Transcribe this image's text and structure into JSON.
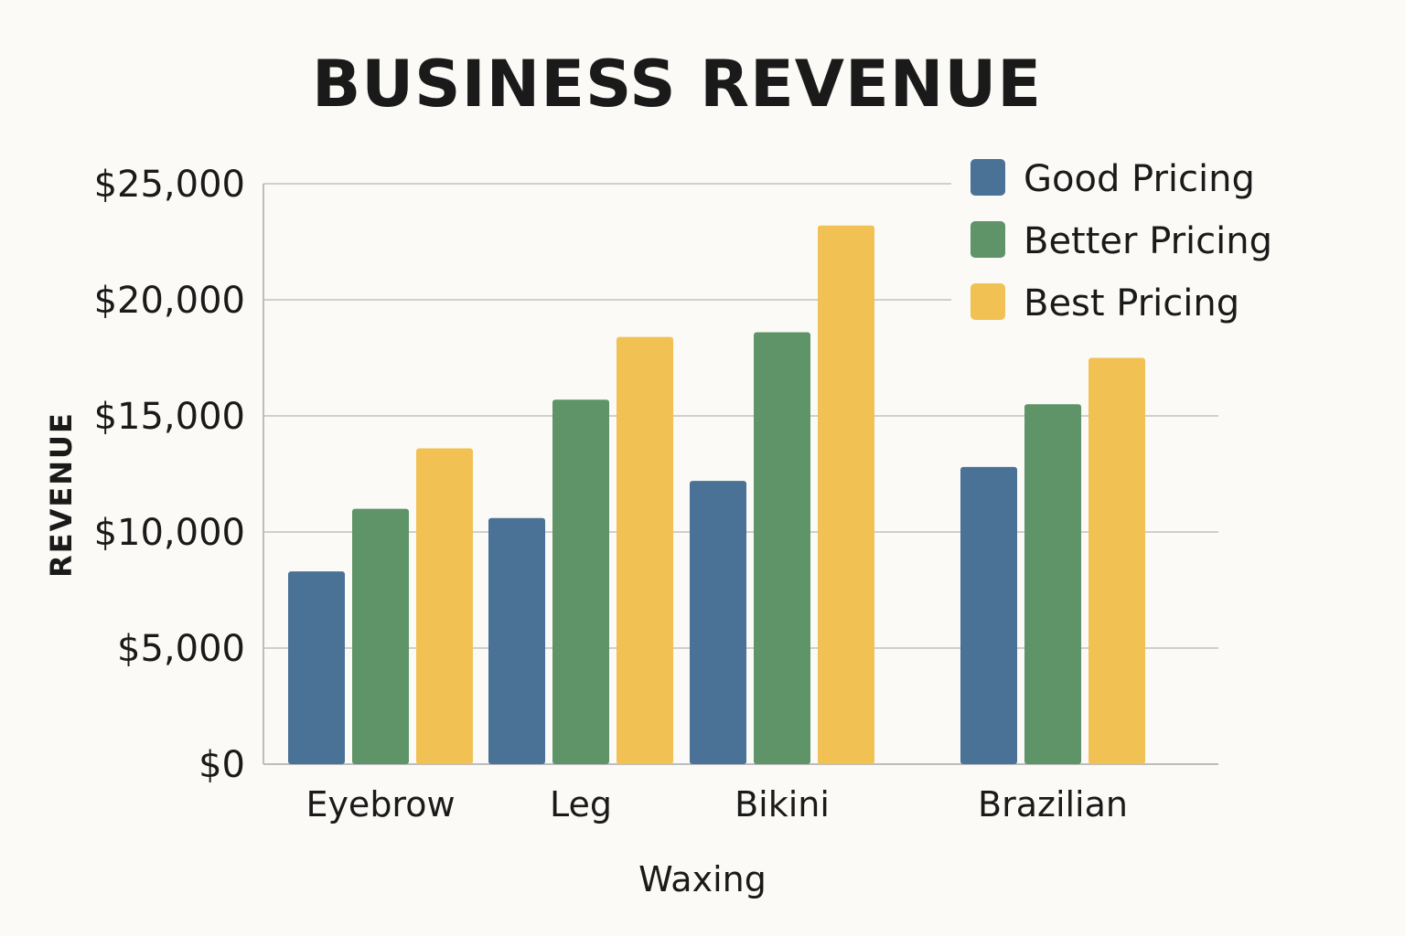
{
  "chart_data": {
    "type": "bar",
    "title": "BUSINESS REVENUE",
    "xlabel": "Waxing",
    "ylabel": "REVENUE",
    "categories": [
      "Eyebrow",
      "Leg",
      "Bikini",
      "Brazilian"
    ],
    "series": [
      {
        "name": "Good Pricing",
        "color": "#4a7196",
        "values": [
          8300,
          10600,
          12200,
          12800
        ]
      },
      {
        "name": "Better Pricing",
        "color": "#5e9467",
        "values": [
          11000,
          15700,
          18600,
          15500
        ]
      },
      {
        "name": "Best Pricing",
        "color": "#f1c154",
        "values": [
          13600,
          18400,
          23200,
          17500
        ]
      }
    ],
    "yticks": [
      {
        "value": 0,
        "label": "$0"
      },
      {
        "value": 5000,
        "label": "$5,000"
      },
      {
        "value": 10000,
        "label": "$10,000"
      },
      {
        "value": 15000,
        "label": "$15,000"
      },
      {
        "value": 20000,
        "label": "$20,000"
      },
      {
        "value": 25000,
        "label": "$25,000"
      }
    ],
    "ylim": [
      0,
      25000
    ],
    "grid": true,
    "legend_position": "top-right"
  }
}
